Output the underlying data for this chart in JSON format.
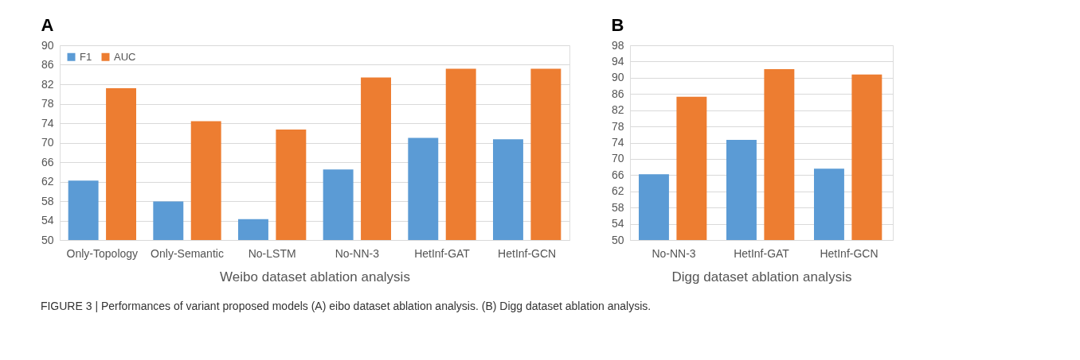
{
  "chart_data": [
    {
      "type": "bar",
      "title": "A",
      "xlabel": "Weibo dataset ablation analysis",
      "categories": [
        "Only-Topology",
        "Only-Semantic",
        "No-LSTM",
        "No-NN-3",
        "HetInf-GAT",
        "HetInf-GCN"
      ],
      "series": [
        {
          "name": "F1",
          "color": "#5b9bd5",
          "values": [
            62.2,
            57.9,
            54.3,
            64.5,
            71.0,
            70.7
          ]
        },
        {
          "name": "AUC",
          "color": "#ed7d31",
          "values": [
            81.2,
            74.4,
            72.7,
            83.4,
            85.2,
            85.2
          ]
        }
      ],
      "ylim": [
        50,
        90
      ],
      "yticks": [
        50,
        54,
        58,
        62,
        66,
        70,
        74,
        78,
        82,
        86,
        90
      ],
      "grid": "y",
      "legend": "top left",
      "annotations": [
        "FIGURE 3 | Performances of variant proposed models (A) eibo dataset ablation analysis. (B) Digg dataset ablation analysis."
      ]
    },
    {
      "type": "bar",
      "title": "B",
      "xlabel": "Digg dataset ablation analysis",
      "categories": [
        "No-NN-3",
        "HetInf-GAT",
        "HetInf-GCN"
      ],
      "series": [
        {
          "color": "#5b9bd5",
          "values": [
            66.2,
            74.7,
            67.6
          ]
        },
        {
          "color": "#ed7d31",
          "values": [
            85.3,
            92.1,
            90.8
          ]
        }
      ],
      "ylim": [
        50,
        98
      ],
      "yticks": [
        50,
        54,
        58,
        62,
        66,
        70,
        74,
        78,
        82,
        86,
        90,
        94,
        98
      ],
      "grid": "y"
    }
  ]
}
